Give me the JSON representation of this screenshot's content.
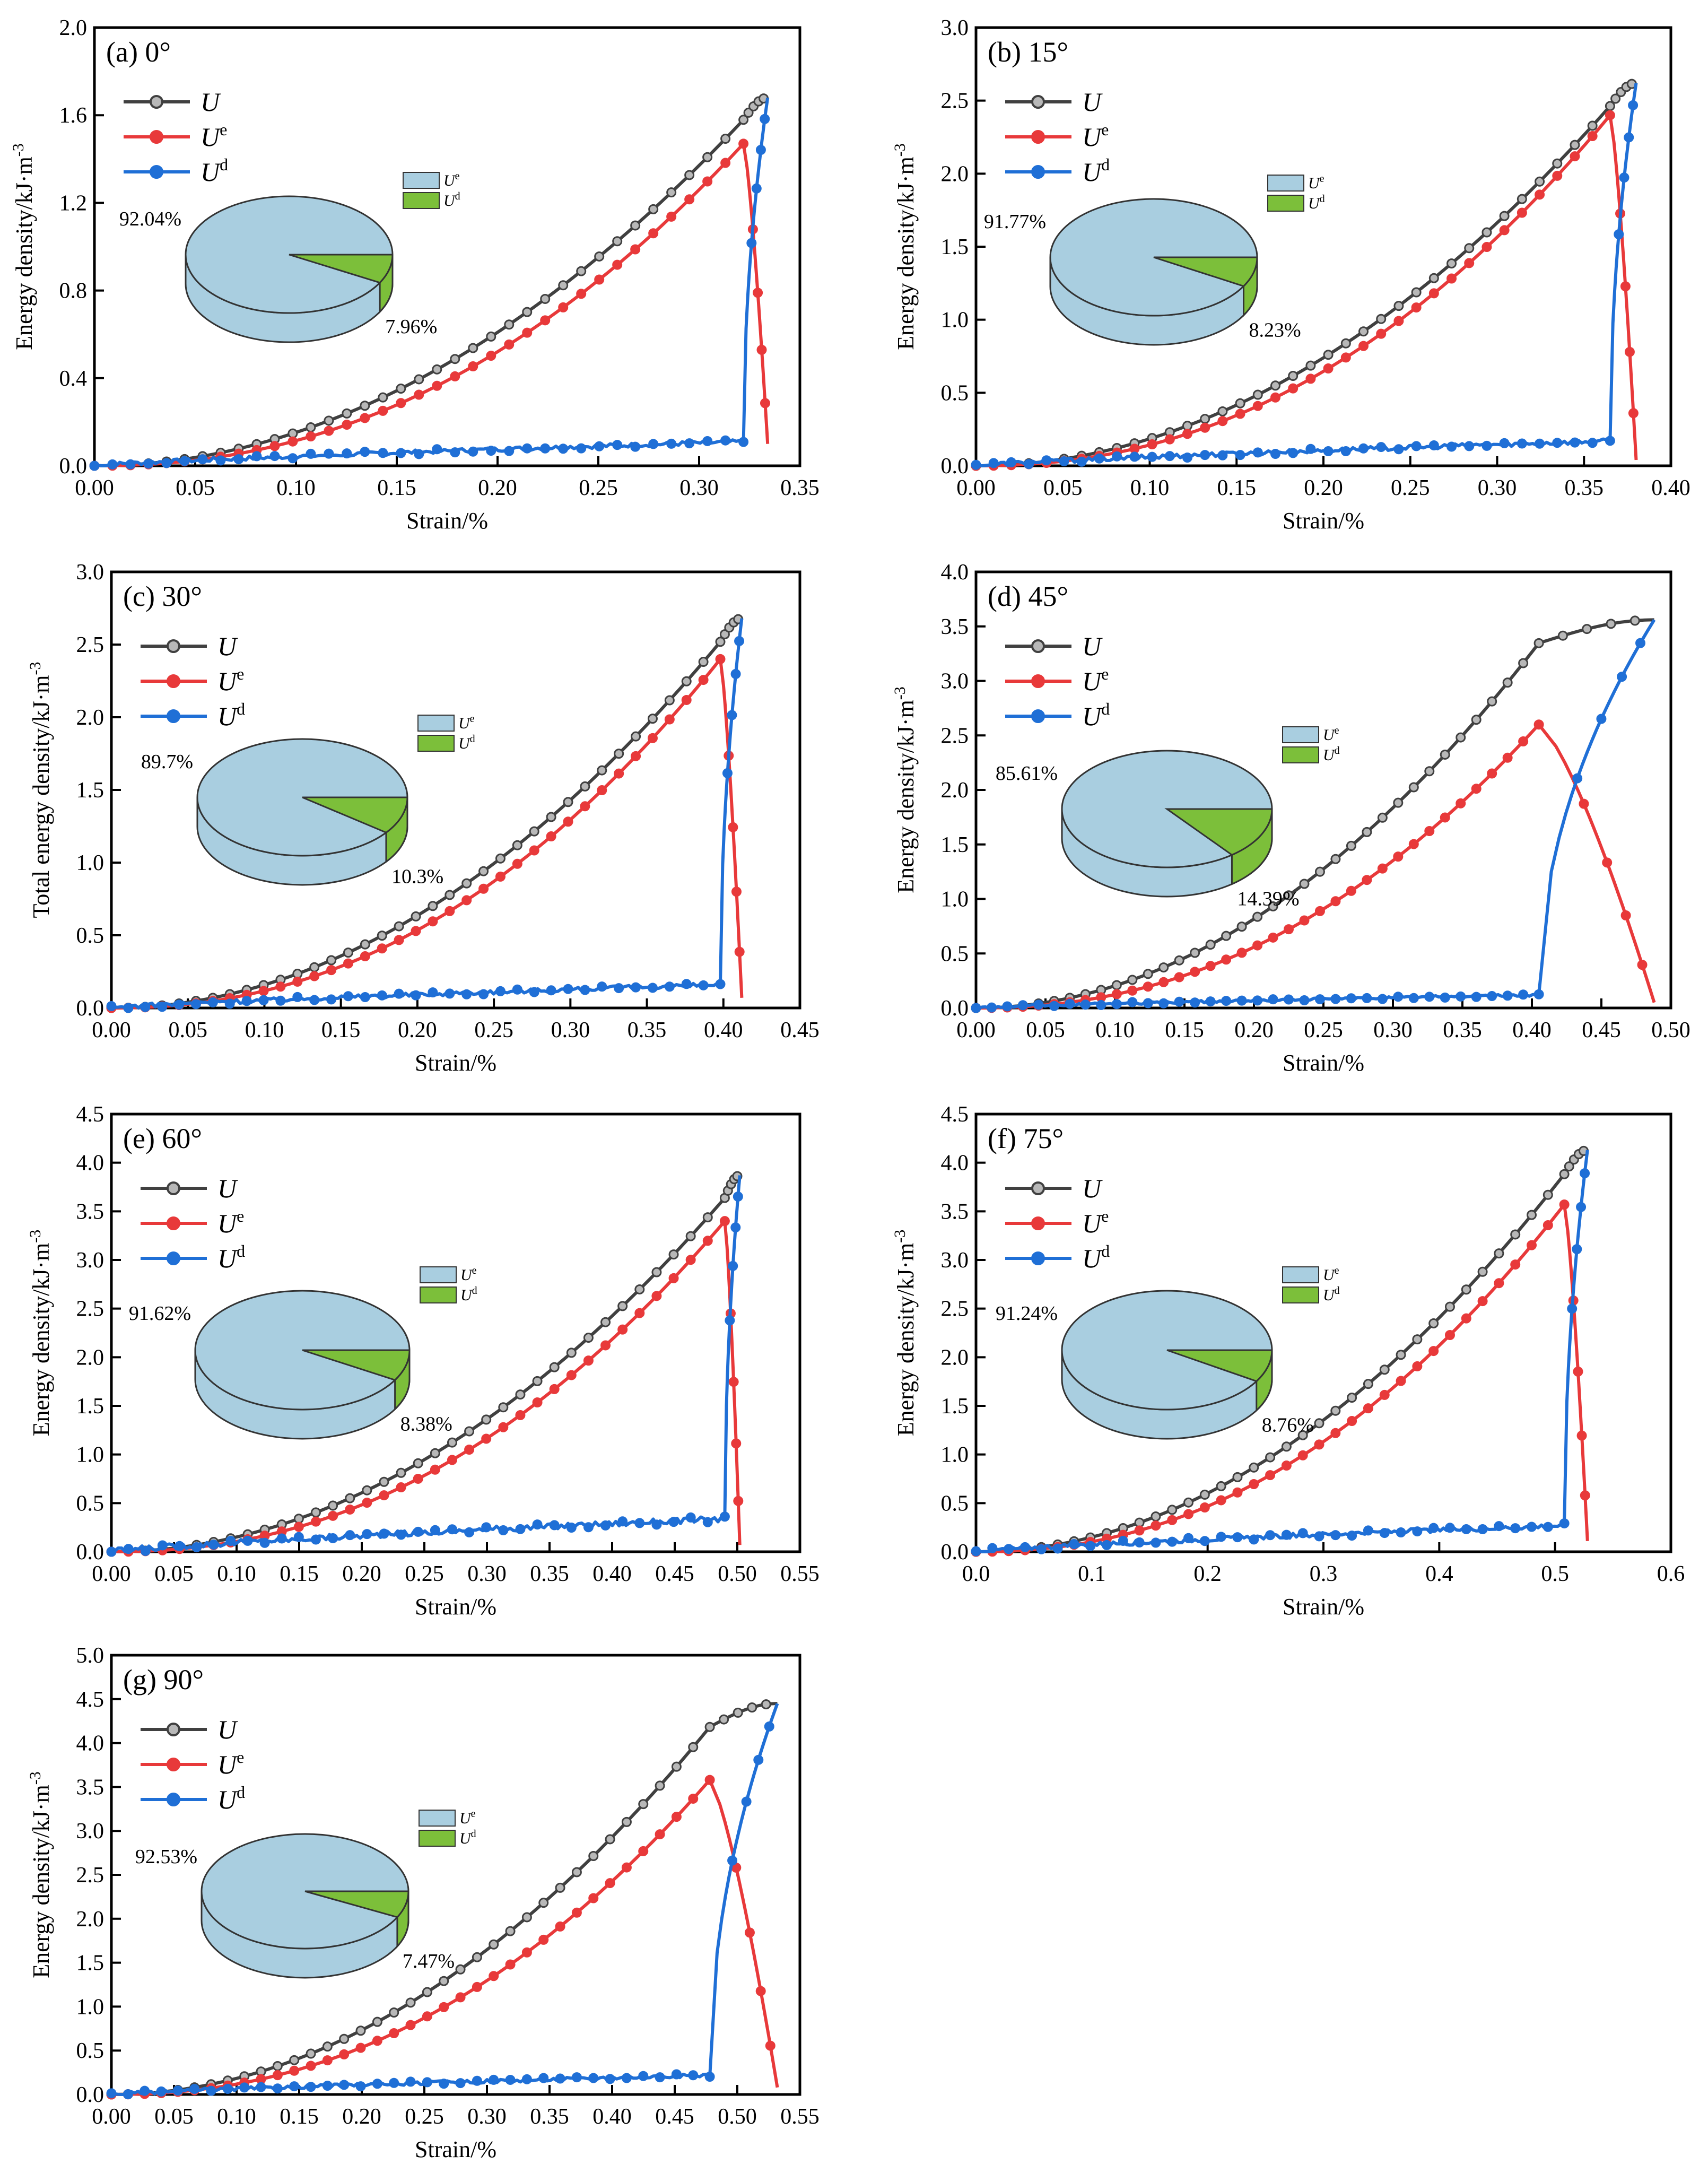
{
  "figure": {
    "series_colors": {
      "U": "#404040",
      "Ue": "#e8393a",
      "Ud": "#1f6fd6"
    },
    "pie_colors": {
      "Ue": "#a9cee0",
      "Ud": "#7cbf3a"
    },
    "legend": [
      {
        "key": "U",
        "base": "U",
        "sup": ""
      },
      {
        "key": "Ue",
        "base": "U",
        "sup": "e"
      },
      {
        "key": "Ud",
        "base": "U",
        "sup": "d"
      }
    ],
    "pie_legend": [
      {
        "key": "Ue",
        "base": "U",
        "sup": "e"
      },
      {
        "key": "Ud",
        "base": "U",
        "sup": "d"
      }
    ]
  },
  "chart_data": [
    {
      "type": "line",
      "title": "(a) 0°",
      "xlabel": "Strain/%",
      "ylabel": "Energy density/kJ·m-3",
      "xlim": [
        0,
        0.35
      ],
      "ylim": [
        0,
        2.0
      ],
      "xticks": [
        "0.00",
        "0.05",
        "0.10",
        "0.15",
        "0.20",
        "0.25",
        "0.30",
        "0.35"
      ],
      "yticks": [
        "0.0",
        "0.4",
        "0.8",
        "1.2",
        "1.6",
        "2.0"
      ],
      "peak": 0.322,
      "end": 0.334,
      "Umax": 1.68,
      "Uepeak": 1.47,
      "Ueend": 0.1,
      "Udbase": 0.11,
      "pie": {
        "Ue_pct": "92.04%",
        "Ud_pct": "7.96%",
        "Ud_frac": 0.0796
      }
    },
    {
      "type": "line",
      "title": "(b) 15°",
      "xlabel": "Strain/%",
      "ylabel": "Energy density/kJ·m-3",
      "xlim": [
        0,
        0.4
      ],
      "ylim": [
        0,
        3.0
      ],
      "xticks": [
        "0.00",
        "0.05",
        "0.10",
        "0.15",
        "0.20",
        "0.25",
        "0.30",
        "0.35",
        "0.40"
      ],
      "yticks": [
        "0.0",
        "0.5",
        "1.0",
        "1.5",
        "2.0",
        "2.5",
        "3.0"
      ],
      "peak": 0.365,
      "end": 0.38,
      "Umax": 2.62,
      "Uepeak": 2.4,
      "Ueend": 0.04,
      "Udbase": 0.17,
      "pie": {
        "Ue_pct": "91.77%",
        "Ud_pct": "8.23%",
        "Ud_frac": 0.0823
      }
    },
    {
      "type": "line",
      "title": "(c) 30°",
      "xlabel": "Strain/%",
      "ylabel": "Total energy density/kJ·m-3",
      "xlim": [
        0,
        0.45
      ],
      "ylim": [
        0,
        3.0
      ],
      "xticks": [
        "0.00",
        "0.05",
        "0.10",
        "0.15",
        "0.20",
        "0.25",
        "0.30",
        "0.35",
        "0.40",
        "0.45"
      ],
      "yticks": [
        "0.0",
        "0.5",
        "1.0",
        "1.5",
        "2.0",
        "2.5",
        "3.0"
      ],
      "peak": 0.398,
      "end": 0.412,
      "Umax": 2.68,
      "Uepeak": 2.4,
      "Ueend": 0.07,
      "Udbase": 0.16,
      "pie": {
        "Ue_pct": "89.7%",
        "Ud_pct": "10.3%",
        "Ud_frac": 0.103
      }
    },
    {
      "type": "line",
      "title": "(d) 45°",
      "xlabel": "Strain/%",
      "ylabel": "Energy density/kJ·m-3",
      "xlim": [
        0,
        0.5
      ],
      "ylim": [
        0,
        4.0
      ],
      "xticks": [
        "0.00",
        "0.05",
        "0.10",
        "0.15",
        "0.20",
        "0.25",
        "0.30",
        "0.35",
        "0.40",
        "0.45",
        "0.50"
      ],
      "yticks": [
        "0.0",
        "0.5",
        "1.0",
        "1.5",
        "2.0",
        "2.5",
        "3.0",
        "3.5",
        "4.0"
      ],
      "peak": 0.405,
      "end": 0.488,
      "Umax": 3.56,
      "Uepeak": 2.6,
      "Ueend": 0.05,
      "Udbase": 0.12,
      "pie": {
        "Ue_pct": "85.61%",
        "Ud_pct": "14.39%",
        "Ud_frac": 0.1439
      }
    },
    {
      "type": "line",
      "title": "(e) 60°",
      "xlabel": "Strain/%",
      "ylabel": "Energy density/kJ·m-3",
      "xlim": [
        0,
        0.55
      ],
      "ylim": [
        0,
        4.5
      ],
      "xticks": [
        "0.00",
        "0.05",
        "0.10",
        "0.15",
        "0.20",
        "0.25",
        "0.30",
        "0.35",
        "0.40",
        "0.45",
        "0.50",
        "0.55"
      ],
      "yticks": [
        "0.0",
        "0.5",
        "1.0",
        "1.5",
        "2.0",
        "2.5",
        "3.0",
        "3.5",
        "4.0",
        "4.5"
      ],
      "peak": 0.49,
      "end": 0.502,
      "Umax": 3.87,
      "Uepeak": 3.4,
      "Ueend": 0.07,
      "Udbase": 0.34,
      "pie": {
        "Ue_pct": "91.62%",
        "Ud_pct": "8.38%",
        "Ud_frac": 0.0838
      }
    },
    {
      "type": "line",
      "title": "(f) 75°",
      "xlabel": "Strain/%",
      "ylabel": "Energy density/kJ·m-3",
      "xlim": [
        0,
        0.6
      ],
      "ylim": [
        0,
        4.5
      ],
      "xticks": [
        "0.0",
        "0.1",
        "0.2",
        "0.3",
        "0.4",
        "0.5",
        "0.6"
      ],
      "yticks": [
        "0.0",
        "0.5",
        "1.0",
        "1.5",
        "2.0",
        "2.5",
        "3.0",
        "3.5",
        "4.0",
        "4.5"
      ],
      "peak": 0.508,
      "end": 0.528,
      "Umax": 4.13,
      "Uepeak": 3.57,
      "Ueend": 0.11,
      "Udbase": 0.27,
      "pie": {
        "Ue_pct": "91.24%",
        "Ud_pct": "8.76%",
        "Ud_frac": 0.0876
      }
    },
    {
      "type": "line",
      "title": "(g) 90°",
      "xlabel": "Strain/%",
      "ylabel": "Energy density/kJ·m-3",
      "xlim": [
        0,
        0.55
      ],
      "ylim": [
        0,
        5.0
      ],
      "xticks": [
        "0.00",
        "0.05",
        "0.10",
        "0.15",
        "0.20",
        "0.25",
        "0.30",
        "0.35",
        "0.40",
        "0.45",
        "0.50",
        "0.55"
      ],
      "yticks": [
        "0.0",
        "0.5",
        "1.0",
        "1.5",
        "2.0",
        "2.5",
        "3.0",
        "3.5",
        "4.0",
        "4.5",
        "5.0"
      ],
      "peak": 0.478,
      "end": 0.532,
      "Umax": 4.45,
      "Uepeak": 3.58,
      "Ueend": 0.08,
      "Udbase": 0.22,
      "pie": {
        "Ue_pct": "92.53%",
        "Ud_pct": "7.47%",
        "Ud_frac": 0.0747
      }
    }
  ]
}
